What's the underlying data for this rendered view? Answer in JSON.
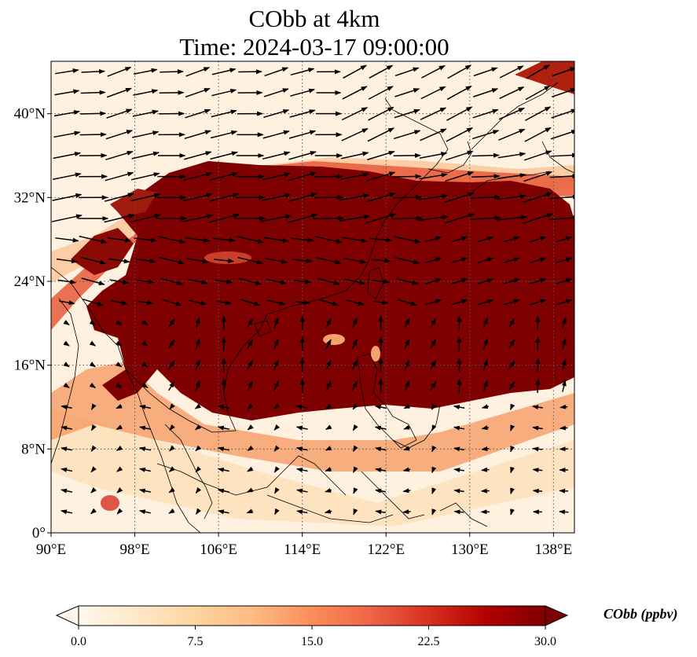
{
  "title": {
    "line1": "CObb at 4km",
    "line2": "Time: 2024-03-17 09:00:00"
  },
  "map": {
    "projection": "PlateCarree",
    "lon_range": [
      90,
      140
    ],
    "lat_range": [
      0,
      45
    ],
    "x_ticks": [
      {
        "value": 90,
        "label": "90°E"
      },
      {
        "value": 98,
        "label": "98°E"
      },
      {
        "value": 106,
        "label": "106°E"
      },
      {
        "value": 114,
        "label": "114°E"
      },
      {
        "value": 122,
        "label": "122°E"
      },
      {
        "value": 130,
        "label": "130°E"
      },
      {
        "value": 138,
        "label": "138°E"
      }
    ],
    "y_ticks": [
      {
        "value": 0,
        "label": "0°"
      },
      {
        "value": 8,
        "label": "8°N"
      },
      {
        "value": 16,
        "label": "16°N"
      },
      {
        "value": 24,
        "label": "24°N"
      },
      {
        "value": 32,
        "label": "32°N"
      },
      {
        "value": 40,
        "label": "40°N"
      }
    ],
    "gridlines": "dotted",
    "field": "CObb concentration (filled contours) with wind vectors",
    "colormap": "OrRd",
    "background_color": "#fff1e0",
    "plume_color": "#7f0000"
  },
  "colorbar": {
    "label": "CObb (ppbv)",
    "ticks": [
      "0.0",
      "7.5",
      "15.0",
      "22.5",
      "30.0"
    ],
    "min": 0,
    "max": 30,
    "extend": "both",
    "colors": [
      "#fff7ec",
      "#fee8c8",
      "#fdd49e",
      "#fdbb84",
      "#fc8d59",
      "#ef6548",
      "#d7301f",
      "#b30000",
      "#7f0000"
    ]
  }
}
